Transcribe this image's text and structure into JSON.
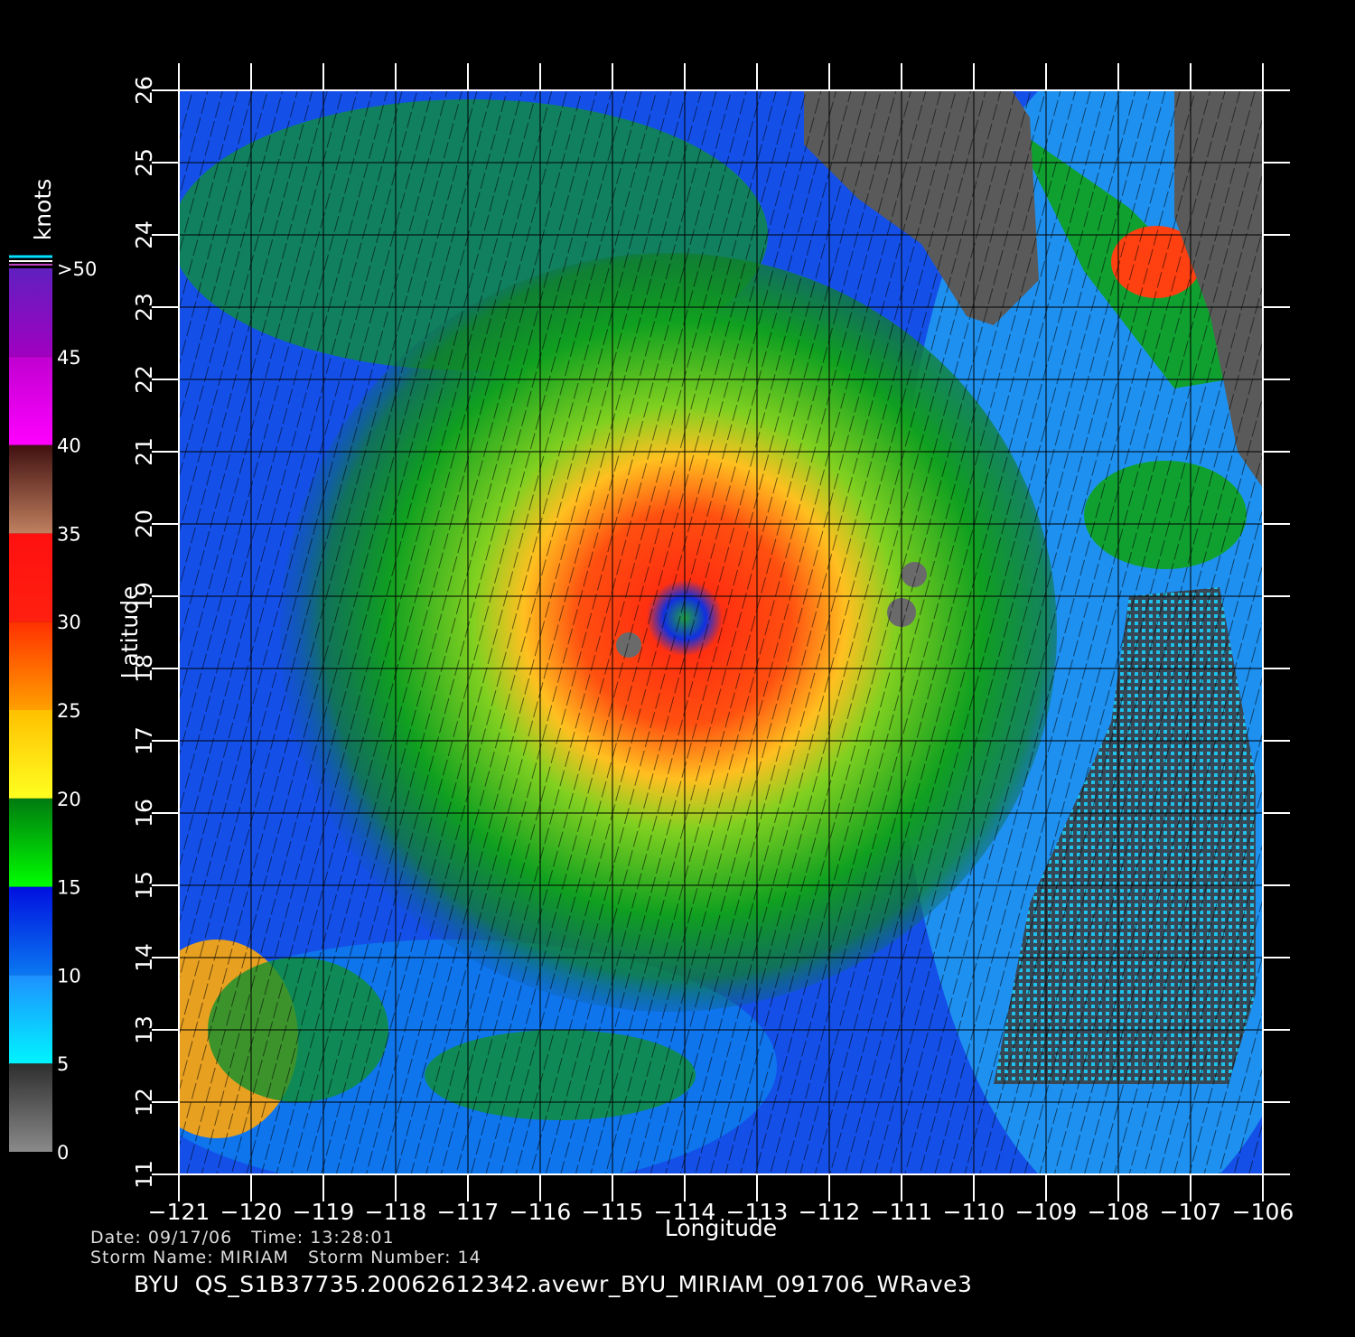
{
  "map": {
    "xlabel": "Longitude",
    "ylabel": "Latitude",
    "xlim": [
      -121,
      -106
    ],
    "ylim": [
      11,
      26
    ],
    "xticks": [
      {
        "value": -121,
        "label": "−121"
      },
      {
        "value": -120,
        "label": "−120"
      },
      {
        "value": -119,
        "label": "−119"
      },
      {
        "value": -118,
        "label": "−118"
      },
      {
        "value": -117,
        "label": "−117"
      },
      {
        "value": -116,
        "label": "−116"
      },
      {
        "value": -115,
        "label": "−115"
      },
      {
        "value": -114,
        "label": "−114"
      },
      {
        "value": -113,
        "label": "−113"
      },
      {
        "value": -112,
        "label": "−112"
      },
      {
        "value": -111,
        "label": "−111"
      },
      {
        "value": -110,
        "label": "−110"
      },
      {
        "value": -109,
        "label": "−109"
      },
      {
        "value": -108,
        "label": "−108"
      },
      {
        "value": -107,
        "label": "−107"
      },
      {
        "value": -106,
        "label": "−106"
      }
    ],
    "yticks": [
      11,
      12,
      13,
      14,
      15,
      16,
      17,
      18,
      19,
      20,
      21,
      22,
      23,
      24,
      25,
      26
    ],
    "grid": true
  },
  "colorbar": {
    "label": "knots",
    "lim": [
      0,
      50
    ],
    "ticks": [
      0,
      5,
      10,
      15,
      20,
      25,
      30,
      35,
      40,
      45,
      {
        "value": 50,
        "label": ">50"
      }
    ],
    "colors": [
      [
        "#8a8a8a",
        "#2e2e2e"
      ],
      [
        "#00f4ff",
        "#1e90ff"
      ],
      [
        "#0a78f0",
        "#0010e0"
      ],
      [
        "#00ff00",
        "#007a10"
      ],
      [
        "#ffff20",
        "#ffc000"
      ],
      [
        "#ffa000",
        "#ff3000"
      ],
      [
        "#ff2010",
        "#ff1010"
      ],
      [
        "#c08060",
        "#401010"
      ],
      [
        "#ff00ff",
        "#c000d0"
      ],
      [
        "#a000c0",
        "#6020c0"
      ]
    ]
  },
  "footer": {
    "line1": "Date: 09/17/06   Time: 13:28:01",
    "line2": "Storm Name: MIRIAM   Storm Number: 14",
    "file": "BYU  QS_S1B37735.20062612342.avewr_BYU_MIRIAM_091706_WRave3"
  }
}
